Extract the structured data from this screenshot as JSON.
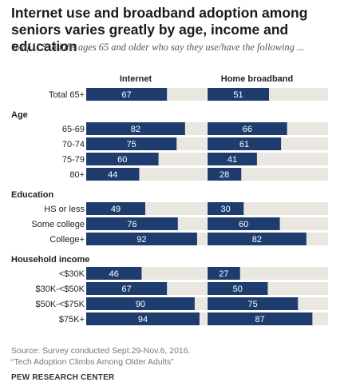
{
  "title": "Internet  use and broadband  adoption among seniors varies greatly by age, income and education",
  "subtitle": "% of U.S. adults ages 65 and older who say they use/have the following ...",
  "source": "Source: Survey conducted Sept.29-Nov.6, 2016.",
  "report": "“Tech Adoption Climbs Among Older Adults”",
  "org": "PEW RESEARCH CENTER",
  "colors": {
    "bar": "#1f3c6e",
    "track": "#eae7e0",
    "label_on_bar": "#ffffff",
    "label_on_track": "#333333"
  },
  "chart_data": {
    "type": "bar",
    "orientation": "horizontal",
    "xlim": [
      0,
      100
    ],
    "series": [
      {
        "name": "Internet",
        "values": [
          67,
          82,
          75,
          60,
          44,
          49,
          76,
          92,
          46,
          67,
          90,
          94
        ]
      },
      {
        "name": "Home broadband",
        "values": [
          51,
          66,
          61,
          41,
          28,
          30,
          60,
          82,
          27,
          50,
          75,
          87
        ]
      }
    ],
    "groups": [
      {
        "heading": "",
        "categories": [
          "Total 65+"
        ]
      },
      {
        "heading": "Age",
        "categories": [
          "65-69",
          "70-74",
          "75-79",
          "80+"
        ]
      },
      {
        "heading": "Education",
        "categories": [
          "HS or less",
          "Some college",
          "College+"
        ]
      },
      {
        "heading": "Household income",
        "categories": [
          "<$30K",
          "$30K-<$50K",
          "$50K-<$75K",
          "$75K+"
        ]
      }
    ]
  }
}
